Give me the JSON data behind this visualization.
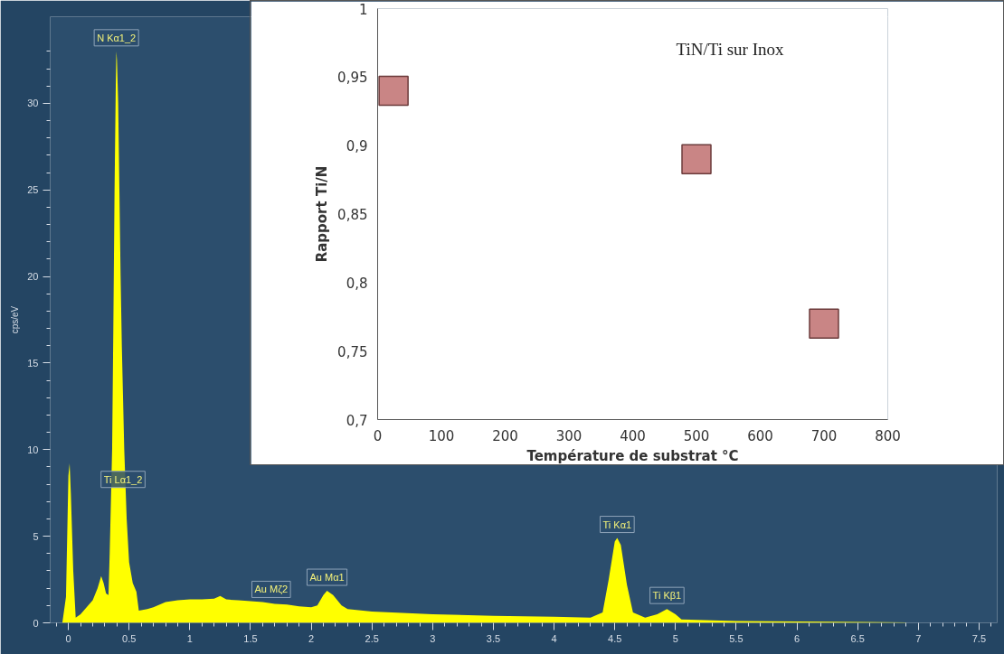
{
  "chart_data": [
    {
      "type": "area",
      "ylabel": "cps/eV",
      "xlim": [
        -0.15,
        7.65
      ],
      "ylim": [
        0,
        35
      ],
      "xticks": [
        0,
        0.5,
        1,
        1.5,
        2,
        2.5,
        3,
        3.5,
        4,
        4.5,
        5,
        5.5,
        6,
        6.5,
        7,
        7.5,
        {
          "value": -0.1,
          "label": null
        },
        {
          "value": 0.1,
          "label": null
        },
        {
          "value": 0.2,
          "label": null
        },
        {
          "value": 0.3,
          "label": null
        },
        {
          "value": 0.4,
          "label": null
        },
        {
          "value": 0.6,
          "label": null
        },
        {
          "value": 0.7,
          "label": null
        },
        {
          "value": 0.8,
          "label": null
        },
        {
          "value": 0.9,
          "label": null
        },
        {
          "value": 1.1,
          "label": null
        },
        {
          "value": 1.2,
          "label": null
        },
        {
          "value": 1.3,
          "label": null
        },
        {
          "value": 1.4,
          "label": null
        },
        {
          "value": 1.6,
          "label": null
        },
        {
          "value": 1.7,
          "label": null
        },
        {
          "value": 1.8,
          "label": null
        },
        {
          "value": 1.9,
          "label": null
        },
        {
          "value": 2.1,
          "label": null
        },
        {
          "value": 2.2,
          "label": null
        },
        {
          "value": 2.3,
          "label": null
        },
        {
          "value": 2.4,
          "label": null
        },
        {
          "value": 2.6,
          "label": null
        },
        {
          "value": 2.7,
          "label": null
        },
        {
          "value": 2.8,
          "label": null
        },
        {
          "value": 2.9,
          "label": null
        },
        {
          "value": 3.1,
          "label": null
        },
        {
          "value": 3.2,
          "label": null
        },
        {
          "value": 3.3,
          "label": null
        },
        {
          "value": 3.4,
          "label": null
        },
        {
          "value": 3.6,
          "label": null
        },
        {
          "value": 3.7,
          "label": null
        },
        {
          "value": 3.8,
          "label": null
        },
        {
          "value": 3.9,
          "label": null
        },
        {
          "value": 4.1,
          "label": null
        },
        {
          "value": 4.2,
          "label": null
        },
        {
          "value": 4.3,
          "label": null
        },
        {
          "value": 4.4,
          "label": null
        },
        {
          "value": 4.6,
          "label": null
        },
        {
          "value": 4.7,
          "label": null
        },
        {
          "value": 4.8,
          "label": null
        },
        {
          "value": 4.9,
          "label": null
        },
        {
          "value": 5.1,
          "label": null
        },
        {
          "value": 5.2,
          "label": null
        },
        {
          "value": 5.3,
          "label": null
        },
        {
          "value": 5.4,
          "label": null
        },
        {
          "value": 5.6,
          "label": null
        },
        {
          "value": 5.7,
          "label": null
        },
        {
          "value": 5.8,
          "label": null
        },
        {
          "value": 5.9,
          "label": null
        },
        {
          "value": 6.1,
          "label": null
        },
        {
          "value": 6.2,
          "label": null
        },
        {
          "value": 6.3,
          "label": null
        },
        {
          "value": 6.4,
          "label": null
        },
        {
          "value": 6.6,
          "label": null
        },
        {
          "value": 6.7,
          "label": null
        },
        {
          "value": 6.8,
          "label": null
        },
        {
          "value": 6.9,
          "label": null
        },
        {
          "value": 7.1,
          "label": null
        },
        {
          "value": 7.2,
          "label": null
        },
        {
          "value": 7.3,
          "label": null
        },
        {
          "value": 7.4,
          "label": null
        },
        {
          "value": 7.6,
          "label": null
        }
      ],
      "yticks": [
        0,
        5,
        10,
        15,
        20,
        25,
        30,
        {
          "value": 1,
          "label": null
        },
        {
          "value": 2,
          "label": null
        },
        {
          "value": 3,
          "label": null
        },
        {
          "value": 4,
          "label": null
        },
        {
          "value": 6,
          "label": null
        },
        {
          "value": 7,
          "label": null
        },
        {
          "value": 8,
          "label": null
        },
        {
          "value": 9,
          "label": null
        },
        {
          "value": 11,
          "label": null
        },
        {
          "value": 12,
          "label": null
        },
        {
          "value": 13,
          "label": null
        },
        {
          "value": 14,
          "label": null
        },
        {
          "value": 16,
          "label": null
        },
        {
          "value": 17,
          "label": null
        },
        {
          "value": 18,
          "label": null
        },
        {
          "value": 19,
          "label": null
        },
        {
          "value": 21,
          "label": null
        },
        {
          "value": 22,
          "label": null
        },
        {
          "value": 23,
          "label": null
        },
        {
          "value": 24,
          "label": null
        },
        {
          "value": 26,
          "label": null
        },
        {
          "value": 27,
          "label": null
        },
        {
          "value": 28,
          "label": null
        },
        {
          "value": 29,
          "label": null
        },
        {
          "value": 31,
          "label": null
        },
        {
          "value": 32,
          "label": null
        },
        {
          "value": 33,
          "label": null
        }
      ],
      "grid": false,
      "x": [
        -0.05,
        -0.02,
        0,
        0.01,
        0.02,
        0.04,
        0.06,
        0.1,
        0.15,
        0.2,
        0.24,
        0.27,
        0.29,
        0.31,
        0.33,
        0.34,
        0.36,
        0.37,
        0.38,
        0.39,
        0.395,
        0.4,
        0.41,
        0.42,
        0.43,
        0.44,
        0.46,
        0.48,
        0.5,
        0.53,
        0.56,
        0.58,
        0.65,
        0.7,
        0.8,
        0.9,
        1.0,
        1.1,
        1.2,
        1.25,
        1.3,
        1.4,
        1.5,
        1.6,
        1.7,
        1.8,
        1.9,
        2.0,
        2.05,
        2.1,
        2.13,
        2.18,
        2.25,
        2.3,
        2.5,
        3.0,
        3.5,
        4.0,
        4.3,
        4.4,
        4.45,
        4.5,
        4.52,
        4.55,
        4.6,
        4.65,
        4.75,
        4.85,
        4.93,
        5.0,
        5.05,
        5.5,
        6.0,
        6.5,
        6.9
      ],
      "series": [
        {
          "color": "#ffff00",
          "values": [
            0,
            1.5,
            8.5,
            9.2,
            7.5,
            3,
            0.3,
            0.5,
            0.9,
            1.3,
            2,
            2.7,
            2.3,
            1.7,
            1.6,
            4,
            10,
            17,
            25,
            31,
            33,
            32.5,
            30,
            25,
            20,
            16,
            10,
            6,
            3.5,
            2.3,
            1.8,
            0.7,
            0.8,
            0.9,
            1.2,
            1.3,
            1.35,
            1.35,
            1.4,
            1.55,
            1.35,
            1.3,
            1.25,
            1.2,
            1.1,
            1.05,
            0.95,
            0.9,
            1.0,
            1.6,
            1.85,
            1.6,
            1.0,
            0.8,
            0.65,
            0.5,
            0.4,
            0.35,
            0.3,
            0.6,
            2.5,
            4.7,
            4.9,
            4.5,
            2.2,
            0.6,
            0.3,
            0.5,
            0.8,
            0.5,
            0.2,
            0.1,
            0.08,
            0.05,
            0.02
          ]
        }
      ],
      "annotations": [
        {
          "text": "N Kα1_2",
          "x": 0.395,
          "y": 33
        },
        {
          "text": "Ti Lα1_2",
          "x": 0.45,
          "y": 7.5
        },
        {
          "text": "Au Mζ2",
          "x": 1.67,
          "y": 1.15
        },
        {
          "text": "Au Mα1",
          "x": 2.13,
          "y": 1.85
        },
        {
          "text": "Ti Kα1",
          "x": 4.52,
          "y": 4.9
        },
        {
          "text": "Ti Kβ1",
          "x": 4.93,
          "y": 0.8
        }
      ]
    },
    {
      "type": "scatter",
      "title": "TiN/Ti sur Inox",
      "xlabel": "Température de substrat °C",
      "ylabel": "Rapport Ti/N",
      "xlim": [
        0,
        800
      ],
      "ylim": [
        0.7,
        1
      ],
      "xticks": [
        0,
        100,
        200,
        300,
        400,
        500,
        600,
        700,
        800
      ],
      "yticks": [
        {
          "value": 0.7,
          "label": "0,7"
        },
        {
          "value": 0.75,
          "label": "0,75"
        },
        {
          "value": 0.8,
          "label": "0,8"
        },
        {
          "value": 0.85,
          "label": "0,85"
        },
        {
          "value": 0.9,
          "label": "0,9"
        },
        {
          "value": 0.95,
          "label": "0,95"
        },
        1
      ],
      "grid": false,
      "marker": "square",
      "x": [
        25,
        500,
        700
      ],
      "series": [
        {
          "color": "#c98585",
          "values": [
            0.94,
            0.89,
            0.77
          ]
        }
      ]
    }
  ]
}
